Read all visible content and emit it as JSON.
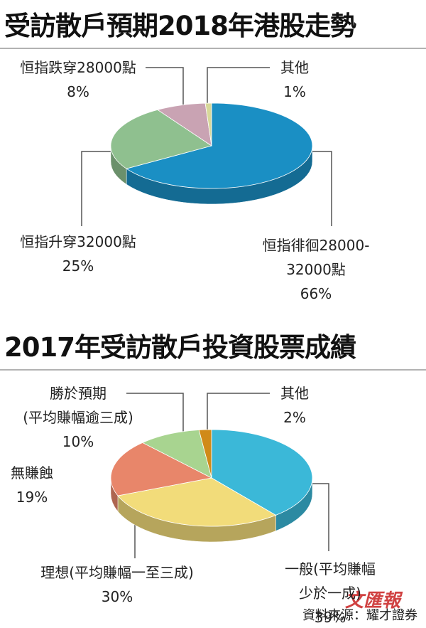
{
  "chart_data": [
    {
      "type": "pie",
      "title": "受訪散戶預期2018年港股走勢",
      "categories": [
        "恒指徘徊28000-32000點",
        "恒指升穿32000點",
        "恒指跌穿28000點",
        "其他"
      ],
      "values": [
        66,
        25,
        8,
        1
      ],
      "value_labels": [
        "66%",
        "25%",
        "8%",
        "1%"
      ],
      "colors": [
        "#1a8fc4",
        "#8fc08f",
        "#c9a3b3",
        "#d8d89a"
      ]
    },
    {
      "type": "pie",
      "title": "2017年受訪散戶投資股票成績",
      "categories": [
        "一般(平均賺幅少於一成)",
        "理想(平均賺幅一至三成)",
        "無賺蝕",
        "勝於預期\n(平均賺幅逾三成)",
        "其他"
      ],
      "values": [
        39,
        30,
        19,
        10,
        2
      ],
      "value_labels": [
        "39%",
        "30%",
        "19%",
        "10%",
        "2%"
      ],
      "colors": [
        "#3bb8d8",
        "#f2dc7a",
        "#e8866a",
        "#a8d490",
        "#d08a18"
      ]
    }
  ],
  "source": "資料來源：耀才證券",
  "watermark": "文匯報"
}
